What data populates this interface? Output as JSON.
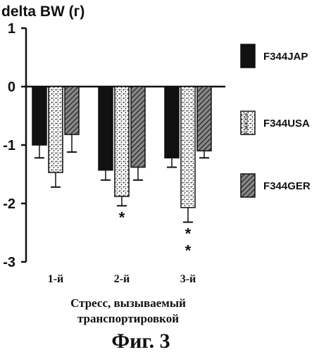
{
  "chart_data": {
    "type": "bar",
    "ylabel": "delta BW (г)",
    "xlabel_lines": [
      "Стресс, вызываемый",
      "транспортировкой"
    ],
    "categories": [
      "1-й",
      "2-й",
      "3-й"
    ],
    "ylim": [
      -3,
      1
    ],
    "yticks": [
      "1",
      "0",
      "-1",
      "-2",
      "-3"
    ],
    "series": [
      {
        "name": "F344JAP",
        "values": [
          -1.0,
          -1.43,
          -1.22
        ],
        "errors": [
          0.22,
          0.17,
          0.16
        ],
        "color": "#111111",
        "fill": "solid"
      },
      {
        "name": "F344USA",
        "values": [
          -1.47,
          -1.88,
          -2.07
        ],
        "errors": [
          0.25,
          0.16,
          0.25
        ],
        "color": "#ffffff",
        "fill": "speckled",
        "label": "F344USA"
      },
      {
        "name": "F344GER",
        "values": [
          -0.82,
          -1.38,
          -1.1
        ],
        "errors": [
          0.3,
          0.22,
          0.12
        ],
        "color": "#555555",
        "fill": "hatched"
      }
    ],
    "significance_marks": [
      {
        "category": "2-й",
        "series": "F344USA",
        "marks": [
          "*"
        ]
      },
      {
        "category": "3-й",
        "series": "F344USA",
        "marks": [
          "*",
          "*"
        ]
      }
    ],
    "legend_position": "right"
  },
  "caption": "Фиг. 3"
}
